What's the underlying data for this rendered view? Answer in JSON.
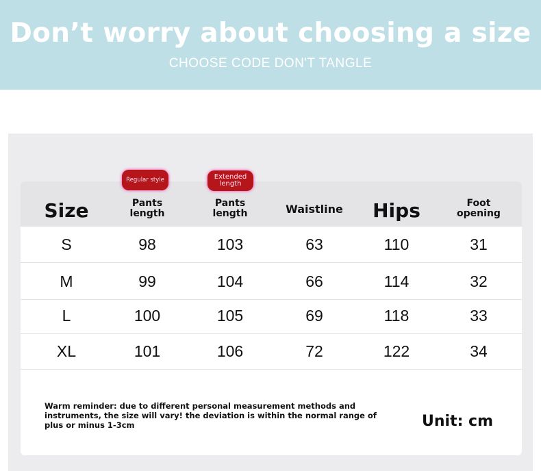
{
  "banner": {
    "title": "Don’t worry about choosing a size",
    "subtitle": "CHOOSE CODE DON'T TANGLE",
    "color": "#bfdfe6"
  },
  "badges": {
    "regular": "Regular style",
    "extended": "Extended length",
    "color": "#b5161c"
  },
  "table": {
    "headers": [
      "Size",
      "Pants length",
      "Pants length",
      "Waistline",
      "Hips",
      "Foot opening"
    ],
    "rows": [
      [
        "S",
        "98",
        "103",
        "63",
        "110",
        "31"
      ],
      [
        "M",
        "99",
        "104",
        "66",
        "114",
        "32"
      ],
      [
        "L",
        "100",
        "105",
        "69",
        "118",
        "33"
      ],
      [
        "XL",
        "101",
        "106",
        "72",
        "122",
        "34"
      ]
    ]
  },
  "footer": {
    "note": "Warm reminder: due to different personal measurement methods and instruments, the size will vary! the deviation is within the normal range of plus or minus 1-3cm",
    "unit": "Unit: cm"
  }
}
